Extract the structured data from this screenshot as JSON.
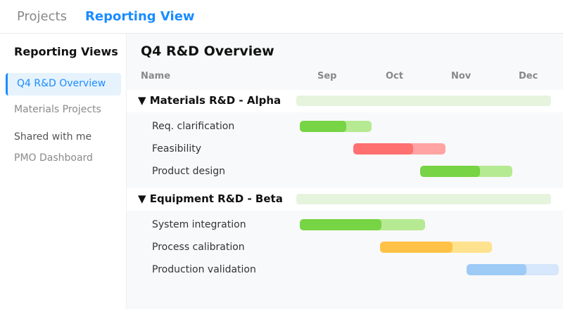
{
  "tabs": {
    "projects": "Projects",
    "reporting": "Reporting View"
  },
  "sidebar": {
    "title": "Reporting Views",
    "items": [
      "Q4 R&D Overview",
      "Materials Projects",
      "Shared with me",
      "PMO Dashboard"
    ]
  },
  "main": {
    "title": "Q4 R&D Overview",
    "name_header": "Name",
    "months": [
      "Sep",
      "Oct",
      "Nov",
      "Dec"
    ],
    "groups": [
      {
        "label": "▼ Materials R&D - Alpha",
        "tasks": [
          {
            "label": "Req. clarification",
            "progress": 0.65,
            "color": "#77d444",
            "track": "#b6ea92"
          },
          {
            "label": "Feasibility",
            "progress": 0.65,
            "color": "#ff7070",
            "track": "#ffa3a3"
          },
          {
            "label": "Product design",
            "progress": 0.65,
            "color": "#77d444",
            "track": "#b6ea92"
          }
        ]
      },
      {
        "label": "▼ Equipment R&D - Beta",
        "tasks": [
          {
            "label": "System integration",
            "progress": 0.65,
            "color": "#77d444",
            "track": "#b6ea92"
          },
          {
            "label": "Process calibration",
            "progress": 0.65,
            "color": "#ffc246",
            "track": "#ffe28e"
          },
          {
            "label": "Production validation",
            "progress": 0.65,
            "color": "#9dcbf6",
            "track": "#d6e6fb"
          }
        ]
      }
    ]
  },
  "colors": {
    "accent": "#1a8cff",
    "group_bar": "#e6f4de"
  }
}
